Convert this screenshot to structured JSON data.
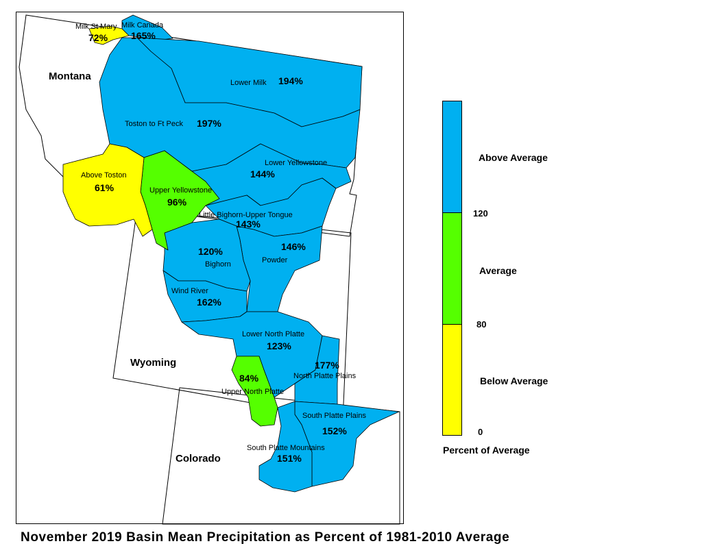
{
  "title": "November 2019 Basin Mean Precipitation as Percent of 1981-2010 Average",
  "colors": {
    "above": "#00B0F0",
    "average": "#55FF00",
    "below": "#FFFF00",
    "outline": "#000000"
  },
  "states": {
    "montana": "Montana",
    "wyoming": "Wyoming",
    "colorado": "Colorado"
  },
  "basins": {
    "milk_st_mary": {
      "name": "Milk St Mary",
      "value": "72%",
      "category": "below"
    },
    "milk_canada": {
      "name": "Milk Canada",
      "value": "165%",
      "category": "above"
    },
    "lower_milk": {
      "name": "Lower Milk",
      "value": "194%",
      "category": "above"
    },
    "toston_ft_peck": {
      "name": "Toston to Ft Peck",
      "value": "197%",
      "category": "above"
    },
    "above_toston": {
      "name": "Above Toston",
      "value": "61%",
      "category": "below"
    },
    "upper_yellowstone": {
      "name": "Upper Yellowstone",
      "value": "96%",
      "category": "average"
    },
    "lower_yellowstone": {
      "name": "Lower Yellowstone",
      "value": "144%",
      "category": "above"
    },
    "little_bighorn": {
      "name": "Little Bighorn-Upper Tongue",
      "value": "143%",
      "category": "above"
    },
    "powder": {
      "name": "Powder",
      "value": "146%",
      "category": "above"
    },
    "bighorn": {
      "name": "Bighorn",
      "value": "120%",
      "category": "above"
    },
    "wind_river": {
      "name": "Wind River",
      "value": "162%",
      "category": "above"
    },
    "lower_north_platte": {
      "name": "Lower North Platte",
      "value": "123%",
      "category": "above"
    },
    "north_platte_plains": {
      "name": "North Platte Plains",
      "value": "177%",
      "category": "above"
    },
    "upper_north_platte": {
      "name": "Upper North Platte",
      "value": "84%",
      "category": "average"
    },
    "south_platte_plains": {
      "name": "South Platte Plains",
      "value": "152%",
      "category": "above"
    },
    "south_platte_mountains": {
      "name": "South Platte Mountains",
      "value": "151%",
      "category": "above"
    }
  },
  "legend": {
    "above": "Above Average",
    "average": "Average",
    "below": "Below Average",
    "t120": "120",
    "t80": "80",
    "t0": "0",
    "caption": "Percent of Average"
  }
}
